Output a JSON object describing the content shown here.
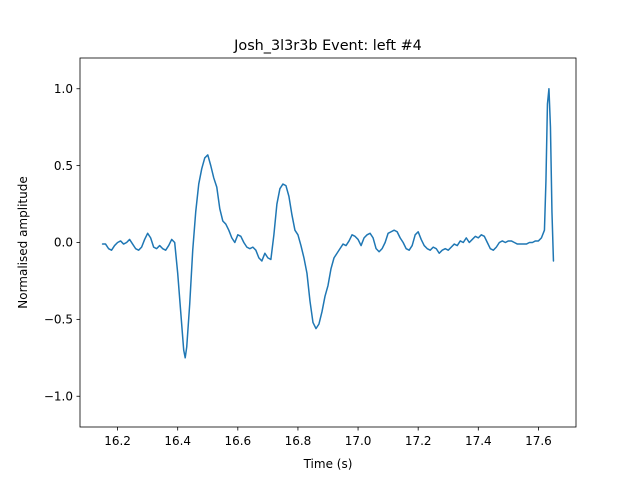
{
  "chart_data": {
    "type": "line",
    "title": "Josh_3l3r3b Event: left #4",
    "xlabel": "Time (s)",
    "ylabel": "Normalised amplitude",
    "xlim": [
      16.075,
      17.725
    ],
    "ylim": [
      -1.2,
      1.2
    ],
    "grid": false,
    "x_ticks": [
      16.2,
      16.4,
      16.6,
      16.8,
      17.0,
      17.2,
      17.4,
      17.6
    ],
    "x_tick_labels": [
      "16.2",
      "16.4",
      "16.6",
      "16.8",
      "17.0",
      "17.2",
      "17.4",
      "17.6"
    ],
    "y_ticks": [
      1.0,
      0.5,
      0.0,
      -0.5,
      -1.0
    ],
    "y_tick_labels": [
      "1.0",
      "0.5",
      "0.0",
      "−0.5",
      "−1.0"
    ],
    "series": [
      {
        "color": "#1f77b4",
        "x": [
          16.15,
          16.16,
          16.17,
          16.18,
          16.19,
          16.2,
          16.21,
          16.22,
          16.23,
          16.24,
          16.25,
          16.26,
          16.27,
          16.28,
          16.29,
          16.3,
          16.31,
          16.32,
          16.33,
          16.34,
          16.35,
          16.36,
          16.37,
          16.38,
          16.39,
          16.4,
          16.41,
          16.42,
          16.425,
          16.43,
          16.44,
          16.45,
          16.46,
          16.47,
          16.48,
          16.49,
          16.5,
          16.51,
          16.52,
          16.53,
          16.54,
          16.55,
          16.56,
          16.57,
          16.58,
          16.59,
          16.6,
          16.61,
          16.62,
          16.63,
          16.64,
          16.65,
          16.66,
          16.67,
          16.68,
          16.69,
          16.7,
          16.71,
          16.72,
          16.73,
          16.74,
          16.75,
          16.76,
          16.77,
          16.78,
          16.79,
          16.8,
          16.81,
          16.82,
          16.83,
          16.84,
          16.85,
          16.86,
          16.87,
          16.88,
          16.89,
          16.9,
          16.91,
          16.92,
          16.93,
          16.94,
          16.95,
          16.96,
          16.97,
          16.98,
          16.99,
          17.0,
          17.01,
          17.02,
          17.03,
          17.04,
          17.05,
          17.06,
          17.07,
          17.08,
          17.09,
          17.1,
          17.11,
          17.12,
          17.13,
          17.14,
          17.15,
          17.16,
          17.17,
          17.18,
          17.19,
          17.2,
          17.21,
          17.22,
          17.23,
          17.24,
          17.25,
          17.26,
          17.27,
          17.28,
          17.29,
          17.3,
          17.31,
          17.32,
          17.33,
          17.34,
          17.35,
          17.36,
          17.37,
          17.38,
          17.39,
          17.4,
          17.41,
          17.42,
          17.43,
          17.44,
          17.45,
          17.46,
          17.47,
          17.48,
          17.49,
          17.5,
          17.51,
          17.52,
          17.53,
          17.54,
          17.55,
          17.56,
          17.57,
          17.58,
          17.59,
          17.6,
          17.61,
          17.62,
          17.625,
          17.63,
          17.635,
          17.64,
          17.645,
          17.65
        ],
        "y": [
          -0.01,
          -0.01,
          -0.04,
          -0.05,
          -0.02,
          0.0,
          0.01,
          -0.01,
          0.0,
          0.02,
          -0.01,
          -0.04,
          -0.05,
          -0.03,
          0.02,
          0.06,
          0.03,
          -0.03,
          -0.04,
          -0.02,
          -0.04,
          -0.05,
          -0.02,
          0.02,
          0.0,
          -0.2,
          -0.45,
          -0.7,
          -0.75,
          -0.68,
          -0.4,
          -0.05,
          0.2,
          0.38,
          0.48,
          0.55,
          0.57,
          0.5,
          0.42,
          0.36,
          0.22,
          0.14,
          0.12,
          0.08,
          0.03,
          0.0,
          0.05,
          0.04,
          0.0,
          -0.03,
          -0.04,
          -0.03,
          -0.05,
          -0.1,
          -0.12,
          -0.07,
          -0.1,
          -0.11,
          0.05,
          0.25,
          0.35,
          0.38,
          0.37,
          0.3,
          0.18,
          0.08,
          0.05,
          -0.02,
          -0.1,
          -0.2,
          -0.38,
          -0.52,
          -0.56,
          -0.53,
          -0.45,
          -0.35,
          -0.28,
          -0.17,
          -0.1,
          -0.07,
          -0.04,
          -0.01,
          -0.02,
          0.01,
          0.05,
          0.04,
          0.02,
          -0.02,
          0.03,
          0.05,
          0.06,
          0.03,
          -0.04,
          -0.06,
          -0.04,
          0.0,
          0.06,
          0.07,
          0.08,
          0.07,
          0.03,
          0.0,
          -0.04,
          -0.05,
          -0.02,
          0.05,
          0.07,
          0.02,
          -0.02,
          -0.04,
          -0.05,
          -0.03,
          -0.04,
          -0.07,
          -0.05,
          -0.04,
          -0.05,
          -0.03,
          -0.01,
          -0.02,
          0.01,
          0.0,
          0.03,
          0.0,
          0.02,
          0.04,
          0.03,
          0.05,
          0.04,
          0.0,
          -0.04,
          -0.05,
          -0.03,
          0.0,
          0.01,
          0.0,
          0.01,
          0.01,
          0.0,
          -0.01,
          -0.01,
          -0.01,
          -0.01,
          0.0,
          0.0,
          0.01,
          0.01,
          0.03,
          0.08,
          0.4,
          0.9,
          1.0,
          0.75,
          0.2,
          -0.12
        ]
      }
    ]
  }
}
